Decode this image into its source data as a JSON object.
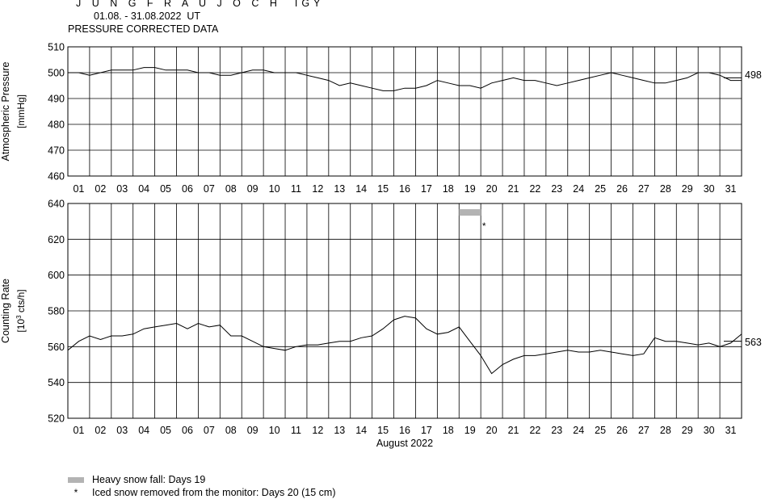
{
  "header": {
    "title": "J U N G F R A U J O C H  IGY",
    "period": "01.08. - 31.08.2022  UT",
    "subtitle": "PRESSURE CORRECTED DATA"
  },
  "chart_data": [
    {
      "name": "pressure",
      "type": "line",
      "ylabel_line1": "Atmospheric Pressure",
      "ylabel_line2": "[mmHg]",
      "ylim": [
        460,
        510
      ],
      "yticks": [
        510,
        500,
        490,
        480,
        470,
        460
      ],
      "xlim": [
        0,
        31
      ],
      "xticks": [
        "01",
        "02",
        "03",
        "04",
        "05",
        "06",
        "07",
        "08",
        "09",
        "10",
        "11",
        "12",
        "13",
        "14",
        "15",
        "16",
        "17",
        "18",
        "19",
        "20",
        "21",
        "22",
        "23",
        "24",
        "25",
        "26",
        "27",
        "28",
        "29",
        "30",
        "31"
      ],
      "grid": true,
      "last_value_label": "498",
      "reference_value": 498,
      "series_day": [
        0,
        0.5,
        1,
        1.5,
        2,
        2.5,
        3,
        3.5,
        4,
        4.5,
        5,
        5.5,
        6,
        6.5,
        7,
        7.5,
        8,
        8.5,
        9,
        9.5,
        10,
        10.5,
        11,
        11.5,
        12,
        12.5,
        13,
        13.5,
        14,
        14.5,
        15,
        15.5,
        16,
        16.5,
        17,
        17.5,
        18,
        18.5,
        19,
        19.5,
        20,
        20.5,
        21,
        21.5,
        22,
        22.5,
        23,
        23.5,
        24,
        24.5,
        25,
        25.5,
        26,
        26.5,
        27,
        27.5,
        28,
        28.5,
        29,
        29.5,
        30,
        30.5,
        31
      ],
      "series_value": [
        500,
        500,
        499,
        500,
        501,
        501,
        501,
        502,
        502,
        501,
        501,
        501,
        500,
        500,
        499,
        499,
        500,
        501,
        501,
        500,
        500,
        500,
        499,
        498,
        497,
        495,
        496,
        495,
        494,
        493,
        493,
        494,
        494,
        495,
        497,
        496,
        495,
        495,
        494,
        496,
        497,
        498,
        497,
        497,
        496,
        495,
        496,
        497,
        498,
        499,
        500,
        499,
        498,
        497,
        496,
        496,
        497,
        498,
        500,
        500,
        499,
        497,
        497
      ]
    },
    {
      "name": "counting-rate",
      "type": "line",
      "xlabel": "August 2022",
      "ylabel_line1": "Counting Rate",
      "ylabel_line2": "[10",
      "ylabel_sup": "3",
      "ylabel_line2_rest": " cts/h]",
      "ylim": [
        520,
        640
      ],
      "yticks": [
        640,
        620,
        600,
        580,
        560,
        540,
        520
      ],
      "xlim": [
        0,
        31
      ],
      "xticks": [
        "01",
        "02",
        "03",
        "04",
        "05",
        "06",
        "07",
        "08",
        "09",
        "10",
        "11",
        "12",
        "13",
        "14",
        "15",
        "16",
        "17",
        "18",
        "19",
        "20",
        "21",
        "22",
        "23",
        "24",
        "25",
        "26",
        "27",
        "28",
        "29",
        "30",
        "31"
      ],
      "grid": true,
      "last_value_label": "563",
      "reference_value": 563,
      "series_day": [
        0,
        0.5,
        1,
        1.5,
        2,
        2.5,
        3,
        3.5,
        4,
        4.5,
        5,
        5.5,
        6,
        6.5,
        7,
        7.5,
        8,
        8.5,
        9,
        9.5,
        10,
        10.5,
        11,
        11.5,
        12,
        12.5,
        13,
        13.5,
        14,
        14.5,
        15,
        15.5,
        16,
        16.5,
        17,
        17.5,
        18,
        18.5,
        19,
        19.5,
        20,
        20.5,
        21,
        21.5,
        22,
        22.5,
        23,
        23.5,
        24,
        24.5,
        25,
        25.5,
        26,
        26.5,
        27,
        27.5,
        28,
        28.5,
        29,
        29.5,
        30,
        30.5,
        31
      ],
      "series_value": [
        558,
        563,
        566,
        564,
        566,
        566,
        567,
        570,
        571,
        572,
        573,
        570,
        573,
        571,
        572,
        566,
        566,
        563,
        560,
        559,
        558,
        560,
        561,
        561,
        562,
        563,
        563,
        565,
        566,
        570,
        575,
        577,
        576,
        570,
        567,
        568,
        571,
        563,
        555,
        545,
        550,
        553,
        555,
        555,
        556,
        557,
        558,
        557,
        557,
        558,
        557,
        556,
        555,
        556,
        565,
        563,
        563,
        562,
        561,
        562,
        560,
        562,
        567
      ],
      "markers": [
        {
          "type": "bar",
          "day_from": 18,
          "day_to": 19,
          "value": 635
        },
        {
          "type": "star",
          "day": 19.15,
          "value": 630
        }
      ]
    }
  ],
  "legend": {
    "snow_label": "Heavy snow fall: Days 19",
    "iced_symbol": "*",
    "iced_label": "Iced snow removed from the monitor: Days 20 (15 cm)"
  },
  "colors": {
    "line": "#000000",
    "grid": "#000000",
    "snow_bar": "#b3b3b3"
  }
}
